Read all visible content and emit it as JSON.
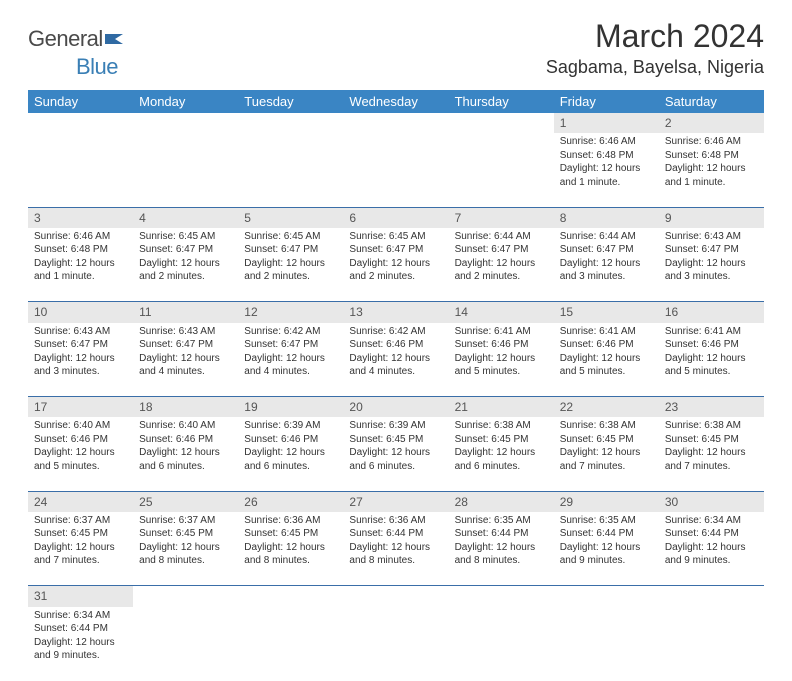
{
  "logo": {
    "general": "General",
    "blue": "Blue"
  },
  "header": {
    "month_title": "March 2024",
    "location": "Sagbama, Bayelsa, Nigeria"
  },
  "colors": {
    "header_bg": "#3a85c4",
    "header_text": "#ffffff",
    "daynum_bg": "#e8e8e8",
    "row_border": "#3a6ea8",
    "body_text": "#333333",
    "logo_blue": "#3a7fb5"
  },
  "day_headers": [
    "Sunday",
    "Monday",
    "Tuesday",
    "Wednesday",
    "Thursday",
    "Friday",
    "Saturday"
  ],
  "weeks": [
    [
      null,
      null,
      null,
      null,
      null,
      {
        "n": "1",
        "sr": "Sunrise: 6:46 AM",
        "ss": "Sunset: 6:48 PM",
        "dl": "Daylight: 12 hours and 1 minute."
      },
      {
        "n": "2",
        "sr": "Sunrise: 6:46 AM",
        "ss": "Sunset: 6:48 PM",
        "dl": "Daylight: 12 hours and 1 minute."
      }
    ],
    [
      {
        "n": "3",
        "sr": "Sunrise: 6:46 AM",
        "ss": "Sunset: 6:48 PM",
        "dl": "Daylight: 12 hours and 1 minute."
      },
      {
        "n": "4",
        "sr": "Sunrise: 6:45 AM",
        "ss": "Sunset: 6:47 PM",
        "dl": "Daylight: 12 hours and 2 minutes."
      },
      {
        "n": "5",
        "sr": "Sunrise: 6:45 AM",
        "ss": "Sunset: 6:47 PM",
        "dl": "Daylight: 12 hours and 2 minutes."
      },
      {
        "n": "6",
        "sr": "Sunrise: 6:45 AM",
        "ss": "Sunset: 6:47 PM",
        "dl": "Daylight: 12 hours and 2 minutes."
      },
      {
        "n": "7",
        "sr": "Sunrise: 6:44 AM",
        "ss": "Sunset: 6:47 PM",
        "dl": "Daylight: 12 hours and 2 minutes."
      },
      {
        "n": "8",
        "sr": "Sunrise: 6:44 AM",
        "ss": "Sunset: 6:47 PM",
        "dl": "Daylight: 12 hours and 3 minutes."
      },
      {
        "n": "9",
        "sr": "Sunrise: 6:43 AM",
        "ss": "Sunset: 6:47 PM",
        "dl": "Daylight: 12 hours and 3 minutes."
      }
    ],
    [
      {
        "n": "10",
        "sr": "Sunrise: 6:43 AM",
        "ss": "Sunset: 6:47 PM",
        "dl": "Daylight: 12 hours and 3 minutes."
      },
      {
        "n": "11",
        "sr": "Sunrise: 6:43 AM",
        "ss": "Sunset: 6:47 PM",
        "dl": "Daylight: 12 hours and 4 minutes."
      },
      {
        "n": "12",
        "sr": "Sunrise: 6:42 AM",
        "ss": "Sunset: 6:47 PM",
        "dl": "Daylight: 12 hours and 4 minutes."
      },
      {
        "n": "13",
        "sr": "Sunrise: 6:42 AM",
        "ss": "Sunset: 6:46 PM",
        "dl": "Daylight: 12 hours and 4 minutes."
      },
      {
        "n": "14",
        "sr": "Sunrise: 6:41 AM",
        "ss": "Sunset: 6:46 PM",
        "dl": "Daylight: 12 hours and 5 minutes."
      },
      {
        "n": "15",
        "sr": "Sunrise: 6:41 AM",
        "ss": "Sunset: 6:46 PM",
        "dl": "Daylight: 12 hours and 5 minutes."
      },
      {
        "n": "16",
        "sr": "Sunrise: 6:41 AM",
        "ss": "Sunset: 6:46 PM",
        "dl": "Daylight: 12 hours and 5 minutes."
      }
    ],
    [
      {
        "n": "17",
        "sr": "Sunrise: 6:40 AM",
        "ss": "Sunset: 6:46 PM",
        "dl": "Daylight: 12 hours and 5 minutes."
      },
      {
        "n": "18",
        "sr": "Sunrise: 6:40 AM",
        "ss": "Sunset: 6:46 PM",
        "dl": "Daylight: 12 hours and 6 minutes."
      },
      {
        "n": "19",
        "sr": "Sunrise: 6:39 AM",
        "ss": "Sunset: 6:46 PM",
        "dl": "Daylight: 12 hours and 6 minutes."
      },
      {
        "n": "20",
        "sr": "Sunrise: 6:39 AM",
        "ss": "Sunset: 6:45 PM",
        "dl": "Daylight: 12 hours and 6 minutes."
      },
      {
        "n": "21",
        "sr": "Sunrise: 6:38 AM",
        "ss": "Sunset: 6:45 PM",
        "dl": "Daylight: 12 hours and 6 minutes."
      },
      {
        "n": "22",
        "sr": "Sunrise: 6:38 AM",
        "ss": "Sunset: 6:45 PM",
        "dl": "Daylight: 12 hours and 7 minutes."
      },
      {
        "n": "23",
        "sr": "Sunrise: 6:38 AM",
        "ss": "Sunset: 6:45 PM",
        "dl": "Daylight: 12 hours and 7 minutes."
      }
    ],
    [
      {
        "n": "24",
        "sr": "Sunrise: 6:37 AM",
        "ss": "Sunset: 6:45 PM",
        "dl": "Daylight: 12 hours and 7 minutes."
      },
      {
        "n": "25",
        "sr": "Sunrise: 6:37 AM",
        "ss": "Sunset: 6:45 PM",
        "dl": "Daylight: 12 hours and 8 minutes."
      },
      {
        "n": "26",
        "sr": "Sunrise: 6:36 AM",
        "ss": "Sunset: 6:45 PM",
        "dl": "Daylight: 12 hours and 8 minutes."
      },
      {
        "n": "27",
        "sr": "Sunrise: 6:36 AM",
        "ss": "Sunset: 6:44 PM",
        "dl": "Daylight: 12 hours and 8 minutes."
      },
      {
        "n": "28",
        "sr": "Sunrise: 6:35 AM",
        "ss": "Sunset: 6:44 PM",
        "dl": "Daylight: 12 hours and 8 minutes."
      },
      {
        "n": "29",
        "sr": "Sunrise: 6:35 AM",
        "ss": "Sunset: 6:44 PM",
        "dl": "Daylight: 12 hours and 9 minutes."
      },
      {
        "n": "30",
        "sr": "Sunrise: 6:34 AM",
        "ss": "Sunset: 6:44 PM",
        "dl": "Daylight: 12 hours and 9 minutes."
      }
    ],
    [
      {
        "n": "31",
        "sr": "Sunrise: 6:34 AM",
        "ss": "Sunset: 6:44 PM",
        "dl": "Daylight: 12 hours and 9 minutes."
      },
      null,
      null,
      null,
      null,
      null,
      null
    ]
  ]
}
